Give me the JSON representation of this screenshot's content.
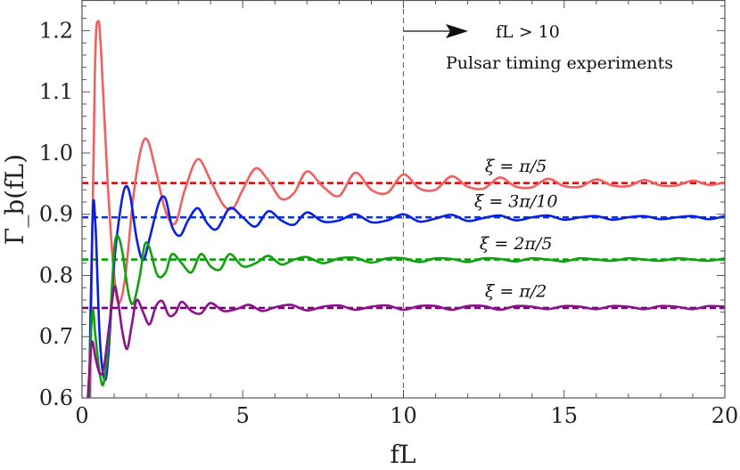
{
  "chart_data": {
    "type": "line",
    "xlabel": "fL",
    "ylabel": "Γ_b(fL)",
    "xlim": [
      0,
      20
    ],
    "ylim": [
      0.6,
      1.25
    ],
    "x_ticks": [
      0,
      5,
      10,
      15,
      20
    ],
    "y_ticks": [
      0.6,
      0.7,
      0.8,
      0.9,
      1.0,
      1.1,
      1.2
    ],
    "x_tick_labels": [
      "0",
      "5",
      "10",
      "15",
      "20"
    ],
    "y_tick_labels": [
      "0.6",
      "0.7",
      "0.8",
      "0.9",
      "1.0",
      "1.1",
      "1.2"
    ],
    "vline": {
      "x": 10,
      "style": "dashed"
    },
    "annotations": {
      "arrow_label": "fL > 10",
      "region_label": "Pulsar timing experiments"
    },
    "series": [
      {
        "name": "ξ = π/5",
        "color": "#f06060",
        "asymptote": 0.951,
        "asymptote_color": "#dd0000",
        "label_at": [
          13.0,
          0.969
        ],
        "points": [
          [
            0.25,
            0.6
          ],
          [
            0.4,
            1.13
          ],
          [
            0.5,
            1.215
          ],
          [
            0.6,
            1.16
          ],
          [
            0.8,
            0.95
          ],
          [
            1.0,
            0.8
          ],
          [
            1.15,
            0.755
          ],
          [
            1.35,
            0.8
          ],
          [
            1.6,
            0.93
          ],
          [
            1.85,
            1.01
          ],
          [
            2.05,
            1.02
          ],
          [
            2.3,
            0.97
          ],
          [
            2.6,
            0.905
          ],
          [
            2.9,
            0.885
          ],
          [
            3.2,
            0.94
          ],
          [
            3.6,
            0.99
          ],
          [
            4.0,
            0.955
          ],
          [
            4.4,
            0.915
          ],
          [
            4.7,
            0.91
          ],
          [
            5.0,
            0.94
          ],
          [
            5.4,
            0.975
          ],
          [
            5.8,
            0.955
          ],
          [
            6.2,
            0.925
          ],
          [
            6.6,
            0.935
          ],
          [
            7.0,
            0.97
          ],
          [
            7.5,
            0.945
          ],
          [
            8.0,
            0.93
          ],
          [
            8.5,
            0.968
          ],
          [
            9.0,
            0.94
          ],
          [
            9.5,
            0.935
          ],
          [
            10.0,
            0.965
          ],
          [
            10.5,
            0.942
          ],
          [
            11.0,
            0.94
          ],
          [
            11.5,
            0.962
          ],
          [
            12.0,
            0.945
          ],
          [
            12.5,
            0.942
          ],
          [
            13.0,
            0.96
          ],
          [
            13.5,
            0.945
          ],
          [
            14.0,
            0.944
          ],
          [
            14.5,
            0.958
          ],
          [
            15.0,
            0.946
          ],
          [
            15.5,
            0.945
          ],
          [
            16.0,
            0.957
          ],
          [
            16.5,
            0.947
          ],
          [
            17.0,
            0.946
          ],
          [
            17.5,
            0.956
          ],
          [
            18.0,
            0.947
          ],
          [
            18.5,
            0.947
          ],
          [
            19.0,
            0.955
          ],
          [
            19.5,
            0.948
          ],
          [
            20.0,
            0.952
          ]
        ]
      },
      {
        "name": "ξ = 3π/10",
        "color": "#0a20e0",
        "asymptote": 0.895,
        "asymptote_color": "#0033ff",
        "label_at": [
          13.0,
          0.912
        ],
        "points": [
          [
            0.22,
            0.6
          ],
          [
            0.33,
            0.9
          ],
          [
            0.42,
            0.88
          ],
          [
            0.55,
            0.7
          ],
          [
            0.7,
            0.63
          ],
          [
            0.82,
            0.67
          ],
          [
            1.0,
            0.82
          ],
          [
            1.2,
            0.91
          ],
          [
            1.35,
            0.945
          ],
          [
            1.5,
            0.93
          ],
          [
            1.7,
            0.86
          ],
          [
            1.9,
            0.825
          ],
          [
            2.1,
            0.86
          ],
          [
            2.4,
            0.92
          ],
          [
            2.6,
            0.925
          ],
          [
            2.8,
            0.88
          ],
          [
            3.05,
            0.865
          ],
          [
            3.3,
            0.89
          ],
          [
            3.6,
            0.91
          ],
          [
            3.9,
            0.885
          ],
          [
            4.2,
            0.876
          ],
          [
            4.6,
            0.91
          ],
          [
            5.0,
            0.895
          ],
          [
            5.4,
            0.88
          ],
          [
            5.8,
            0.905
          ],
          [
            6.2,
            0.89
          ],
          [
            6.6,
            0.883
          ],
          [
            7.0,
            0.903
          ],
          [
            7.5,
            0.888
          ],
          [
            8.0,
            0.89
          ],
          [
            8.5,
            0.9
          ],
          [
            9.0,
            0.887
          ],
          [
            9.5,
            0.89
          ],
          [
            10.0,
            0.9
          ],
          [
            10.5,
            0.888
          ],
          [
            11.0,
            0.893
          ],
          [
            11.5,
            0.899
          ],
          [
            12.0,
            0.889
          ],
          [
            12.5,
            0.894
          ],
          [
            13.0,
            0.898
          ],
          [
            13.5,
            0.89
          ],
          [
            14.0,
            0.895
          ],
          [
            14.5,
            0.898
          ],
          [
            15.0,
            0.891
          ],
          [
            15.5,
            0.895
          ],
          [
            16.0,
            0.897
          ],
          [
            16.5,
            0.891
          ],
          [
            17.0,
            0.895
          ],
          [
            17.5,
            0.897
          ],
          [
            18.0,
            0.892
          ],
          [
            18.5,
            0.895
          ],
          [
            19.0,
            0.897
          ],
          [
            19.5,
            0.892
          ],
          [
            20.0,
            0.897
          ]
        ]
      },
      {
        "name": "ξ = 2π/5",
        "color": "#10a010",
        "asymptote": 0.826,
        "asymptote_color": "#00a000",
        "label_at": [
          13.0,
          0.843
        ],
        "points": [
          [
            0.2,
            0.6
          ],
          [
            0.32,
            0.74
          ],
          [
            0.42,
            0.7
          ],
          [
            0.55,
            0.64
          ],
          [
            0.68,
            0.625
          ],
          [
            0.85,
            0.71
          ],
          [
            1.0,
            0.84
          ],
          [
            1.1,
            0.865
          ],
          [
            1.25,
            0.84
          ],
          [
            1.45,
            0.77
          ],
          [
            1.6,
            0.755
          ],
          [
            1.8,
            0.8
          ],
          [
            1.95,
            0.85
          ],
          [
            2.1,
            0.845
          ],
          [
            2.35,
            0.8
          ],
          [
            2.6,
            0.805
          ],
          [
            2.8,
            0.835
          ],
          [
            3.1,
            0.82
          ],
          [
            3.4,
            0.805
          ],
          [
            3.7,
            0.835
          ],
          [
            4.0,
            0.815
          ],
          [
            4.3,
            0.81
          ],
          [
            4.6,
            0.835
          ],
          [
            5.0,
            0.815
          ],
          [
            5.4,
            0.82
          ],
          [
            5.8,
            0.832
          ],
          [
            6.2,
            0.818
          ],
          [
            6.6,
            0.826
          ],
          [
            7.0,
            0.83
          ],
          [
            7.5,
            0.82
          ],
          [
            8.0,
            0.828
          ],
          [
            8.5,
            0.829
          ],
          [
            9.0,
            0.821
          ],
          [
            9.5,
            0.828
          ],
          [
            10.0,
            0.828
          ],
          [
            10.5,
            0.822
          ],
          [
            11.0,
            0.828
          ],
          [
            11.5,
            0.827
          ],
          [
            12.0,
            0.822
          ],
          [
            12.5,
            0.828
          ],
          [
            13.0,
            0.827
          ],
          [
            13.5,
            0.823
          ],
          [
            14.0,
            0.828
          ],
          [
            14.5,
            0.826
          ],
          [
            15.0,
            0.823
          ],
          [
            15.5,
            0.828
          ],
          [
            16.0,
            0.826
          ],
          [
            16.5,
            0.824
          ],
          [
            17.0,
            0.828
          ],
          [
            17.5,
            0.826
          ],
          [
            18.0,
            0.824
          ],
          [
            18.5,
            0.828
          ],
          [
            19.0,
            0.826
          ],
          [
            19.5,
            0.824
          ],
          [
            20.0,
            0.828
          ]
        ]
      },
      {
        "name": "ξ = π/2",
        "color": "#8a128a",
        "asymptote": 0.747,
        "asymptote_color": "#7a007a",
        "label_at": [
          13.0,
          0.765
        ],
        "points": [
          [
            0.18,
            0.6
          ],
          [
            0.3,
            0.69
          ],
          [
            0.42,
            0.665
          ],
          [
            0.55,
            0.64
          ],
          [
            0.68,
            0.65
          ],
          [
            0.85,
            0.72
          ],
          [
            1.0,
            0.78
          ],
          [
            1.1,
            0.765
          ],
          [
            1.25,
            0.71
          ],
          [
            1.4,
            0.68
          ],
          [
            1.55,
            0.72
          ],
          [
            1.7,
            0.76
          ],
          [
            1.9,
            0.74
          ],
          [
            2.1,
            0.72
          ],
          [
            2.3,
            0.75
          ],
          [
            2.5,
            0.758
          ],
          [
            2.7,
            0.735
          ],
          [
            2.9,
            0.738
          ],
          [
            3.1,
            0.757
          ],
          [
            3.4,
            0.742
          ],
          [
            3.7,
            0.738
          ],
          [
            4.0,
            0.755
          ],
          [
            4.4,
            0.742
          ],
          [
            4.8,
            0.745
          ],
          [
            5.2,
            0.752
          ],
          [
            5.6,
            0.742
          ],
          [
            6.0,
            0.748
          ],
          [
            6.5,
            0.752
          ],
          [
            7.0,
            0.743
          ],
          [
            7.5,
            0.749
          ],
          [
            8.0,
            0.751
          ],
          [
            8.5,
            0.744
          ],
          [
            9.0,
            0.749
          ],
          [
            9.5,
            0.751
          ],
          [
            10.0,
            0.744
          ],
          [
            10.5,
            0.75
          ],
          [
            11.0,
            0.75
          ],
          [
            11.5,
            0.744
          ],
          [
            12.0,
            0.75
          ],
          [
            12.5,
            0.75
          ],
          [
            13.0,
            0.744
          ],
          [
            13.5,
            0.75
          ],
          [
            14.0,
            0.749
          ],
          [
            14.5,
            0.745
          ],
          [
            15.0,
            0.75
          ],
          [
            15.5,
            0.749
          ],
          [
            16.0,
            0.745
          ],
          [
            16.5,
            0.75
          ],
          [
            17.0,
            0.749
          ],
          [
            17.5,
            0.745
          ],
          [
            18.0,
            0.75
          ],
          [
            18.5,
            0.749
          ],
          [
            19.0,
            0.745
          ],
          [
            19.5,
            0.75
          ],
          [
            20.0,
            0.749
          ]
        ]
      }
    ]
  }
}
